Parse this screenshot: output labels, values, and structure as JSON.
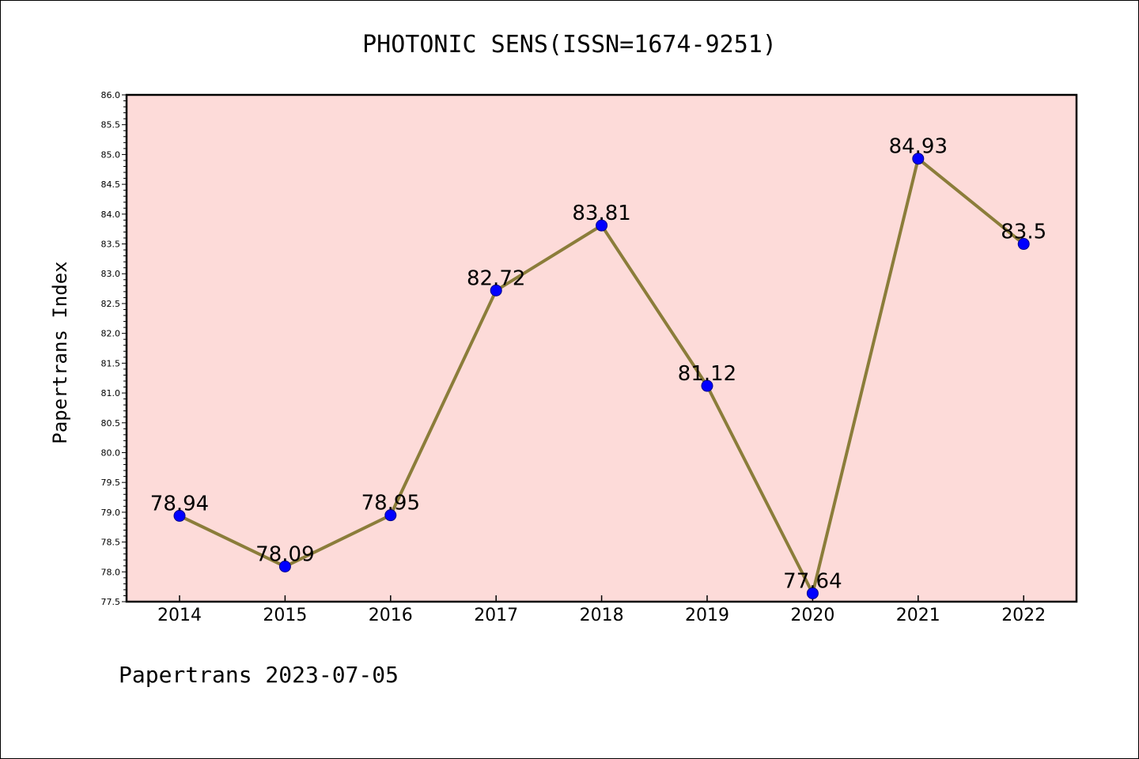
{
  "chart_data": {
    "type": "line",
    "title": "PHOTONIC SENS(ISSN=1674-9251)",
    "ylabel": "Papertrans Index",
    "xlabel": "",
    "categories": [
      "2014",
      "2015",
      "2016",
      "2017",
      "2018",
      "2019",
      "2020",
      "2021",
      "2022"
    ],
    "series": [
      {
        "values": [
          78.94,
          78.09,
          78.95,
          82.72,
          83.81,
          81.12,
          77.64,
          84.93,
          83.5
        ],
        "labels": [
          "78.94",
          "78.09",
          "78.95",
          "82.72",
          "83.81",
          "81.12",
          "77.64",
          "84.93",
          "83.5"
        ]
      }
    ],
    "ylim": [
      77.5,
      86.0
    ],
    "yticks": [
      "77.5",
      "78.0",
      "78.5",
      "79.0",
      "79.5",
      "80.0",
      "80.5",
      "81.0",
      "81.5",
      "82.0",
      "82.5",
      "83.0",
      "83.5",
      "84.0",
      "84.5",
      "85.0",
      "85.5",
      "86.0"
    ],
    "grid": false,
    "colors": {
      "plot_background": "#fddbd9",
      "line": "#8b7d3a",
      "marker": "#0000ff"
    }
  },
  "footer": {
    "text": "Papertrans 2023-07-05"
  }
}
